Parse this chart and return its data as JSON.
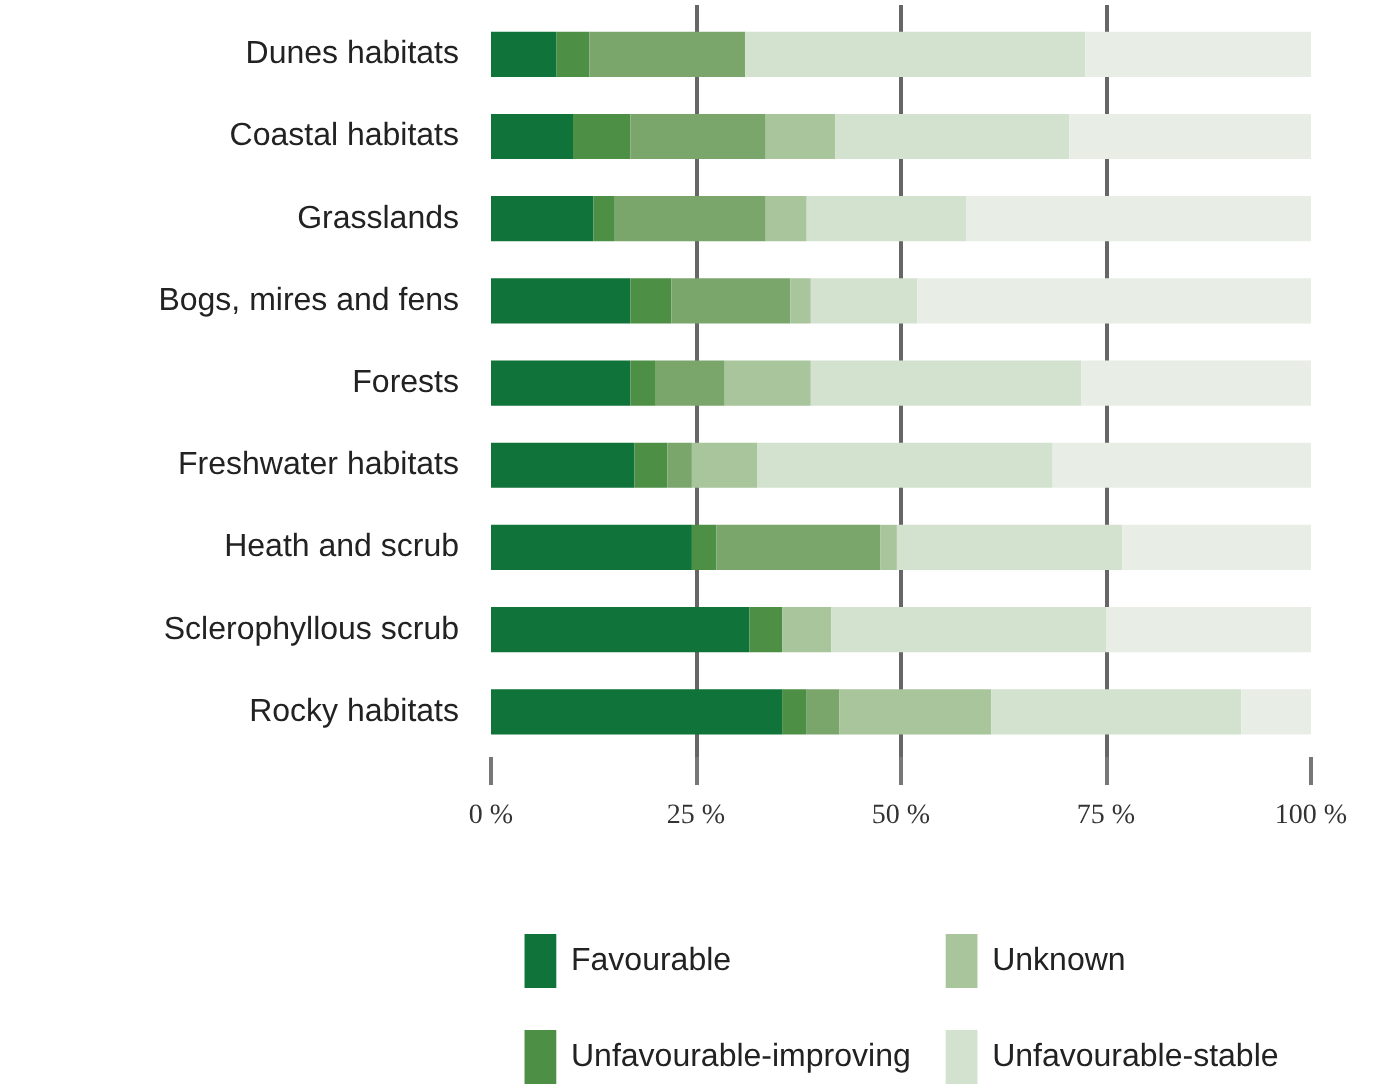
{
  "chart_data": {
    "type": "bar",
    "orientation": "horizontal",
    "stacked": true,
    "categories": [
      "Dunes habitats",
      "Coastal habitats",
      "Grasslands",
      "Bogs, mires and fens",
      "Forests",
      "Freshwater habitats",
      "Heath and scrub",
      "Sclerophyllous scrub",
      "Rocky habitats"
    ],
    "series": [
      {
        "name": "Favourable",
        "color": "#10733a",
        "values": [
          8,
          10,
          12.5,
          17,
          17,
          17.5,
          24.5,
          31.5,
          35.5
        ]
      },
      {
        "name": "Unfavourable-improving",
        "color": "#4e8f46",
        "values": [
          4,
          7,
          2.5,
          5,
          3,
          4,
          3,
          4,
          3
        ]
      },
      {
        "color": "#7aa66c",
        "values": [
          19,
          16.5,
          18.5,
          14.5,
          8.5,
          3,
          20,
          0,
          4
        ]
      },
      {
        "name": "Unknown",
        "color": "#a8c59c",
        "values": [
          0,
          8.5,
          5,
          2.5,
          10.5,
          8,
          2,
          6,
          18.5
        ]
      },
      {
        "name": "Unfavourable-stable",
        "color": "#d3e2cf",
        "values": [
          41.5,
          28.5,
          19.5,
          13,
          33,
          36,
          27.5,
          33.5,
          30.5
        ]
      },
      {
        "color": "#e8eee6",
        "values": [
          27.5,
          29.5,
          42,
          48,
          28,
          31.5,
          23,
          25,
          8.5
        ]
      }
    ],
    "xlim": [
      0,
      100
    ],
    "xticks": [
      {
        "value": 0,
        "label": "0 %"
      },
      {
        "value": 25,
        "label": "25 %"
      },
      {
        "value": 50,
        "label": "50 %"
      },
      {
        "value": 75,
        "label": "75 %"
      },
      {
        "value": 100,
        "label": "100 %"
      }
    ],
    "grid": "x",
    "legend": "bottom"
  }
}
